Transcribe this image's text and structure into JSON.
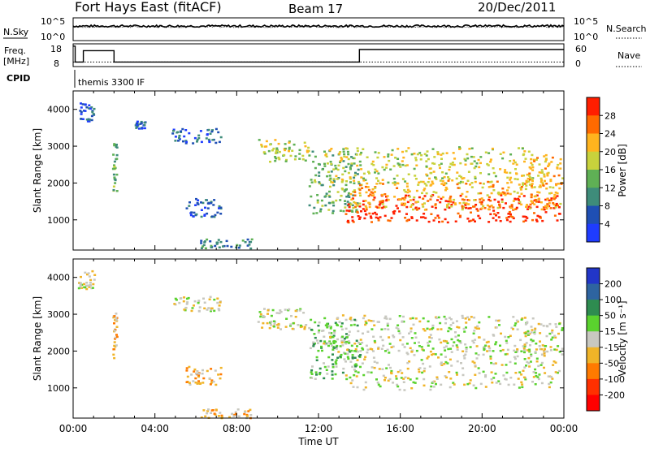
{
  "header": {
    "station": "Fort Hays East (fitACF)",
    "beam": "Beam 17",
    "date": "20/Dec/2011"
  },
  "meta_panels": {
    "left_labels": {
      "nsky": "N.Sky",
      "freq_line1": "Freq.",
      "freq_line2": "[MHz]",
      "cpid": "CPID"
    },
    "right_labels": {
      "nsearch": "N.Search",
      "nave": "Nave"
    },
    "nsky_axis": {
      "top": "10^5",
      "bottom": "10^0"
    },
    "nsearch_axis": {
      "top": "10^5",
      "bottom": "10^0"
    },
    "freq_axis": {
      "top": "18",
      "bottom": "8"
    },
    "nave_axis": {
      "top": "60",
      "bottom": "0"
    },
    "cpid_text": "themis 3300 IF"
  },
  "x_axis": {
    "title": "Time UT",
    "ticks": [
      "00:00",
      "04:00",
      "08:00",
      "12:00",
      "16:00",
      "20:00",
      "00:00"
    ]
  },
  "power_panel": {
    "ylabel": "Slant Range [km]",
    "yticks": [
      "1000",
      "2000",
      "3000",
      "4000"
    ],
    "colorbar_label": "Power [dB]",
    "colorbar_ticks": [
      "4",
      "8",
      "12",
      "16",
      "20",
      "24",
      "28"
    ],
    "colors": [
      "#1f3cff",
      "#1f4fb4",
      "#3e8c7a",
      "#5fb055",
      "#c8d23c",
      "#ffb41e",
      "#ff6a00",
      "#ff1e00"
    ]
  },
  "velocity_panel": {
    "ylabel": "Slant Range [km]",
    "yticks": [
      "1000",
      "2000",
      "3000",
      "4000"
    ],
    "colorbar_label": "Velocity [m s⁻¹]",
    "colorbar_ticks": [
      "200",
      "100",
      "50",
      "15",
      "-15",
      "-50",
      "-100",
      "-200"
    ],
    "colors": [
      "#2236c8",
      "#2e64a0",
      "#2e8c50",
      "#5ad22e",
      "#c8c8c0",
      "#f0b428",
      "#ff7a00",
      "#ff3000",
      "#ff0000"
    ]
  },
  "chart_data": {
    "type": "heatmap",
    "x_range_hours": [
      0,
      24
    ],
    "y_range_km": [
      180,
      4500
    ],
    "grid": false,
    "freq_mhz_steps": [
      {
        "from_h": 0.0,
        "to_h": 0.1,
        "value": 17
      },
      {
        "from_h": 0.1,
        "to_h": 0.5,
        "value": 10
      },
      {
        "from_h": 0.5,
        "to_h": 2.0,
        "value": 15
      },
      {
        "from_h": 2.0,
        "to_h": 14.0,
        "value": 10
      },
      {
        "from_h": 14.0,
        "to_h": 24.0,
        "value": 15.5
      }
    ],
    "nave_level": 12,
    "nsky_level_log": 3.2,
    "nsearch_level_log": 3.0,
    "power_blobs": [
      {
        "t0": 0.2,
        "t1": 1.0,
        "r0": 3700,
        "r1": 4200,
        "level": 1
      },
      {
        "t0": 1.9,
        "t1": 2.1,
        "r0": 1800,
        "r1": 3100,
        "level": 3
      },
      {
        "t0": 3.0,
        "t1": 3.5,
        "r0": 3500,
        "r1": 3700,
        "level": 1
      },
      {
        "t0": 4.8,
        "t1": 7.2,
        "r0": 3100,
        "r1": 3500,
        "level": 1
      },
      {
        "t0": 5.5,
        "t1": 7.2,
        "r0": 1100,
        "r1": 1600,
        "level": 1
      },
      {
        "t0": 6.2,
        "t1": 8.8,
        "r0": 250,
        "r1": 500,
        "level": 2
      },
      {
        "t0": 9.0,
        "t1": 11.5,
        "r0": 2600,
        "r1": 3200,
        "level": 4
      },
      {
        "t0": 11.5,
        "t1": 14.0,
        "r0": 1200,
        "r1": 2900,
        "level": 3
      },
      {
        "t0": 12.2,
        "t1": 22.5,
        "r0": 2000,
        "r1": 3000,
        "level": 4
      },
      {
        "t0": 13.2,
        "t1": 23.8,
        "r0": 950,
        "r1": 1700,
        "level": 7
      },
      {
        "t0": 13.5,
        "t1": 23.8,
        "r0": 1300,
        "r1": 2100,
        "level": 5
      },
      {
        "t0": 22.0,
        "t1": 23.9,
        "r0": 1900,
        "r1": 2800,
        "level": 5
      }
    ],
    "velocity_blobs": [
      {
        "t0": 0.2,
        "t1": 1.0,
        "r0": 3700,
        "r1": 4200,
        "level": 4
      },
      {
        "t0": 1.9,
        "t1": 2.1,
        "r0": 1800,
        "r1": 3100,
        "level": 5
      },
      {
        "t0": 4.8,
        "t1": 7.2,
        "r0": 3100,
        "r1": 3500,
        "level": 4
      },
      {
        "t0": 5.5,
        "t1": 7.2,
        "r0": 1100,
        "r1": 1600,
        "level": 5
      },
      {
        "t0": 6.2,
        "t1": 8.8,
        "r0": 200,
        "r1": 450,
        "level": 5
      },
      {
        "t0": 9.0,
        "t1": 11.5,
        "r0": 2600,
        "r1": 3200,
        "level": 4
      },
      {
        "t0": 11.5,
        "t1": 14.0,
        "r0": 1200,
        "r1": 2900,
        "level": 3
      },
      {
        "t0": 12.2,
        "t1": 22.5,
        "r0": 2000,
        "r1": 3000,
        "level": 4
      },
      {
        "t0": 13.2,
        "t1": 23.8,
        "r0": 950,
        "r1": 2100,
        "level": 4
      },
      {
        "t0": 22.0,
        "t1": 23.9,
        "r0": 1900,
        "r1": 2800,
        "level": 4
      }
    ]
  }
}
